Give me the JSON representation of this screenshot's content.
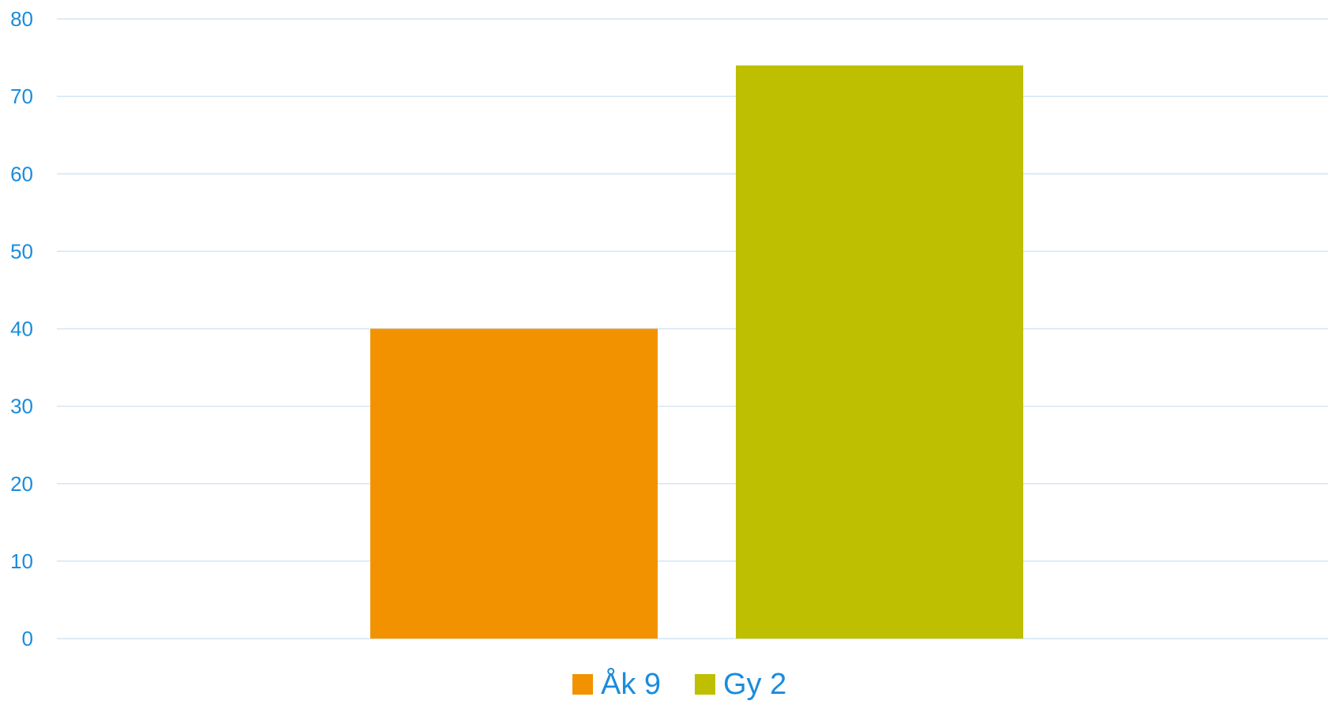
{
  "chart_data": {
    "type": "bar",
    "title": "",
    "xlabel": "",
    "ylabel": "",
    "categories": [
      ""
    ],
    "series": [
      {
        "name": "Åk 9",
        "values": [
          40
        ],
        "color": "#f39200"
      },
      {
        "name": "Gy 2",
        "values": [
          74
        ],
        "color": "#bdbf00"
      }
    ],
    "ylim": [
      0,
      80
    ],
    "yticks": [
      0,
      10,
      20,
      30,
      40,
      50,
      60,
      70,
      80
    ],
    "grid": true,
    "legend_position": "bottom",
    "text_color": "#1a8cdc",
    "grid_color": "#d3e6f4"
  }
}
